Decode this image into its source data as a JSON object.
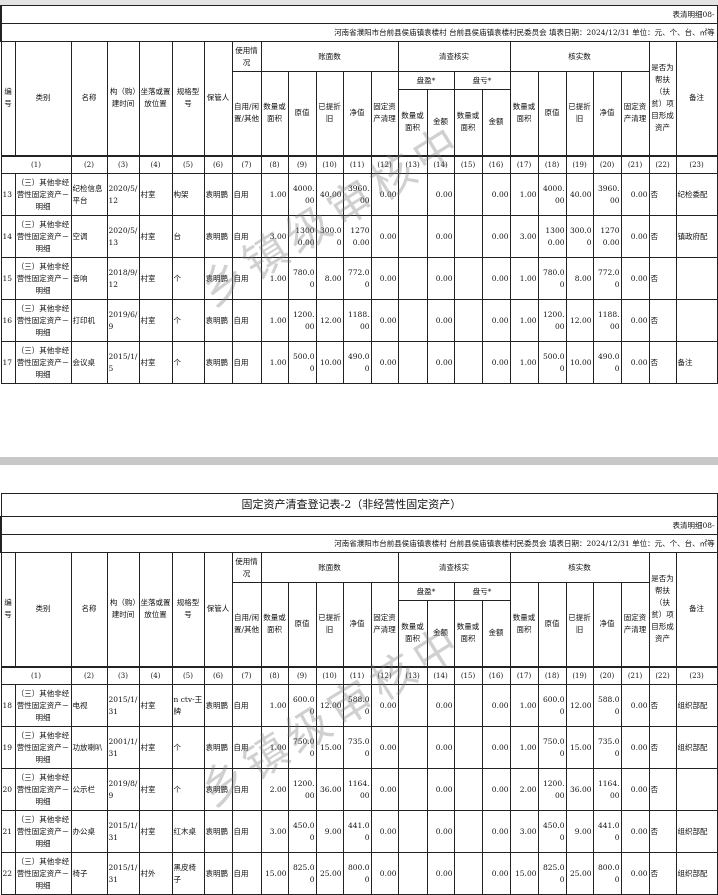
{
  "doc": {
    "title": "固定资产清查登记表-2（非经营性固定资产）",
    "form_code": "表清明细08-",
    "info": "河南省濮阳市台前县侯庙镇袁楼村  台前县侯庙镇袁楼村民委员会  填表日期：2024/12/31   单位：元、个、台、㎡等",
    "watermark": "乡镇级审核中"
  },
  "header": {
    "no": "编号",
    "category": "类别",
    "name": "名称",
    "date": "构（购）建时间",
    "location": "坐落或置放位置",
    "spec": "规格型号",
    "keeper": "保管人",
    "usage": "使用情况",
    "usage_sub": "自用/闲置/其他",
    "book": "账面数",
    "check": "清查核实",
    "verified": "核实数",
    "surplus": "盘盈*",
    "deficit": "盘亏*",
    "qty": "数量或面积",
    "orig": "原值",
    "dep": "已提折旧",
    "net": "净值",
    "clear": "固定资产清理",
    "amount": "金额",
    "poverty": "是否为帮扶（扶贫）项目形成资产",
    "remark": "备注"
  },
  "col_numbers": [
    "(1)",
    "(2)",
    "(3)",
    "(4)",
    "(5)",
    "(6)",
    "(7)",
    "(8)",
    "(9)",
    "(10)",
    "(11)",
    "(12)",
    "(13)",
    "(14)",
    "(15)",
    "(16)",
    "(17)",
    "(18)",
    "(19)",
    "(20)",
    "(21)",
    "(22)",
    "(23)"
  ],
  "page1_rows": [
    [
      "13",
      "（三）其他非经营性固定资产－明细",
      "纪检信息平台",
      "2020/5/12",
      "村室",
      "构架",
      "袁明鹏",
      "自用",
      "1.00",
      "4000.00",
      "40.00",
      "3960.00",
      "0.00",
      "",
      "0.00",
      "",
      "0.00",
      "1.00",
      "4000.00",
      "40.00",
      "3960.00",
      "0.00",
      "否",
      "纪检委配"
    ],
    [
      "14",
      "（三）其他非经营性固定资产－明细",
      "空调",
      "2020/5/13",
      "村室",
      "台",
      "袁明鹏",
      "自用",
      "3.00",
      "13000.00",
      "300.00",
      "12700.00",
      "0.00",
      "",
      "0.00",
      "",
      "0.00",
      "3.00",
      "13000.00",
      "300.00",
      "12700.00",
      "0.00",
      "否",
      "镇政府配"
    ],
    [
      "15",
      "（三）其他非经营性固定资产－明细",
      "音响",
      "2018/9/12",
      "村室",
      "个",
      "袁明鹏",
      "自用",
      "1.00",
      "780.00",
      "8.00",
      "772.00",
      "0.00",
      "",
      "0.00",
      "",
      "0.00",
      "1.00",
      "780.00",
      "8.00",
      "772.00",
      "0.00",
      "否",
      ""
    ],
    [
      "16",
      "（三）其他非经营性固定资产－明细",
      "打印机",
      "2019/6/9",
      "村室",
      "个",
      "袁明鹏",
      "自用",
      "1.00",
      "1200.00",
      "12.00",
      "1188.00",
      "0.00",
      "",
      "0.00",
      "",
      "0.00",
      "1.00",
      "1200.00",
      "12.00",
      "1188.00",
      "0.00",
      "否",
      ""
    ],
    [
      "17",
      "（三）其他非经营性固定资产－明细",
      "会议桌",
      "2015/1/5",
      "村室",
      "个",
      "袁明鹏",
      "自用",
      "1.00",
      "500.00",
      "10.00",
      "490.00",
      "0.00",
      "",
      "0.00",
      "",
      "0.00",
      "1.00",
      "500.00",
      "10.00",
      "490.00",
      "0.00",
      "否",
      "备注"
    ]
  ],
  "page2_rows": [
    [
      "18",
      "（三）其他非经营性固定资产－明细",
      "电视",
      "2015/1/31",
      "村室",
      "n ctv-王牌",
      "袁明鹏",
      "自用",
      "1.00",
      "600.00",
      "12.00",
      "588.00",
      "0.00",
      "",
      "0.00",
      "",
      "0.00",
      "1.00",
      "600.00",
      "12.00",
      "588.00",
      "0.00",
      "否",
      "组织部配"
    ],
    [
      "19",
      "（三）其他非经营性固定资产－明细",
      "功放喇叭",
      "2001/1/31",
      "村室",
      "个",
      "袁明鹏",
      "自用",
      "1.00",
      "750.00",
      "15.00",
      "735.00",
      "0.00",
      "",
      "0.00",
      "",
      "0.00",
      "1.00",
      "750.00",
      "15.00",
      "735.00",
      "0.00",
      "否",
      "组织部配"
    ],
    [
      "20",
      "（三）其他非经营性固定资产－明细",
      "公示栏",
      "2019/8/9",
      "村室",
      "个",
      "袁明鹏",
      "自用",
      "2.00",
      "1200.00",
      "36.00",
      "1164.00",
      "0.00",
      "",
      "0.00",
      "",
      "0.00",
      "2.00",
      "1200.00",
      "36.00",
      "1164.00",
      "0.00",
      "否",
      ""
    ],
    [
      "21",
      "（三）其他非经营性固定资产－明细",
      "办公桌",
      "2015/1/31",
      "村室",
      "红木桌",
      "袁明鹏",
      "自用",
      "3.00",
      "450.00",
      "9.00",
      "441.00",
      "0.00",
      "",
      "0.00",
      "",
      "0.00",
      "3.00",
      "450.00",
      "9.00",
      "441.00",
      "0.00",
      "否",
      "组织部配"
    ],
    [
      "22",
      "（三）其他非经营性固定资产－明细",
      "椅子",
      "2015/1/31",
      "村外",
      "黑皮椅子",
      "袁明鹏",
      "自用",
      "15.00",
      "825.00",
      "25.00",
      "800.00",
      "0.00",
      "",
      "0.00",
      "",
      "0.00",
      "15.00",
      "825.00",
      "25.00",
      "800.00",
      "0.00",
      "否",
      "组织部配"
    ]
  ]
}
